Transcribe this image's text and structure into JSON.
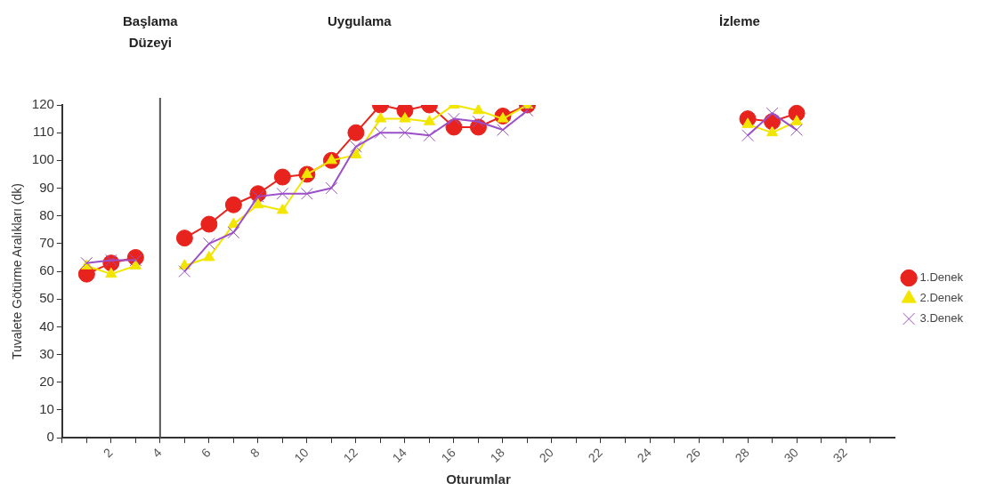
{
  "chart_data": {
    "type": "line",
    "xlabel": "Oturumlar",
    "ylabel": "Tuvalete Götürme Aralıkları (dk)",
    "annotations": [
      "Başlama\nDüzeyi",
      "Uygulama",
      "İzleme"
    ],
    "xlim": [
      0,
      34
    ],
    "xticks": [
      {
        "value": 0,
        "label": null
      },
      {
        "value": 1,
        "label": null
      },
      2,
      {
        "value": 3,
        "label": null
      },
      4,
      {
        "value": 5,
        "label": null
      },
      6,
      {
        "value": 7,
        "label": null
      },
      8,
      {
        "value": 9,
        "label": null
      },
      10,
      {
        "value": 11,
        "label": null
      },
      12,
      {
        "value": 13,
        "label": null
      },
      14,
      {
        "value": 15,
        "label": null
      },
      16,
      {
        "value": 17,
        "label": null
      },
      18,
      {
        "value": 19,
        "label": null
      },
      20,
      {
        "value": 21,
        "label": null
      },
      22,
      {
        "value": 23,
        "label": null
      },
      24,
      {
        "value": 25,
        "label": null
      },
      26,
      {
        "value": 27,
        "label": null
      },
      28,
      {
        "value": 29,
        "label": null
      },
      30,
      {
        "value": 31,
        "label": null
      },
      32,
      {
        "value": 33,
        "label": null
      }
    ],
    "ylim": [
      0,
      120
    ],
    "yticks": [
      0,
      10,
      20,
      30,
      40,
      50,
      60,
      70,
      80,
      90,
      100,
      110,
      120
    ],
    "x": [
      1,
      2,
      3,
      4,
      5,
      6,
      7,
      8,
      9,
      10,
      11,
      12,
      13,
      14,
      15,
      16,
      17,
      18,
      19,
      20,
      28,
      29,
      30
    ],
    "series": [
      {
        "name": "1.Denek",
        "color": "#e8231d",
        "marker": "circle",
        "values": [
          59,
          63,
          65,
          null,
          72,
          77,
          84,
          88,
          94,
          95,
          100,
          110,
          120,
          118,
          120,
          112,
          112,
          116,
          120,
          null,
          115,
          114,
          117
        ]
      },
      {
        "name": "2.Denek",
        "color": "#f2e600",
        "marker": "triangle",
        "values": [
          62,
          59,
          62,
          null,
          62,
          65,
          77,
          84,
          82,
          95,
          100,
          102,
          115,
          115,
          114,
          120,
          118,
          115,
          120,
          null,
          113,
          110,
          114
        ]
      },
      {
        "name": "3.Denek",
        "color": "#9b4fc8",
        "marker": "cross",
        "values": [
          63,
          64,
          64,
          null,
          60,
          70,
          74,
          87,
          88,
          88,
          90,
          105,
          110,
          110,
          109,
          115,
          114,
          111,
          118,
          null,
          109,
          117,
          111
        ]
      }
    ],
    "ref_lines": [
      {
        "axis": "x",
        "value": 4,
        "color": "#555555"
      }
    ],
    "grid": false,
    "legend": "right"
  }
}
